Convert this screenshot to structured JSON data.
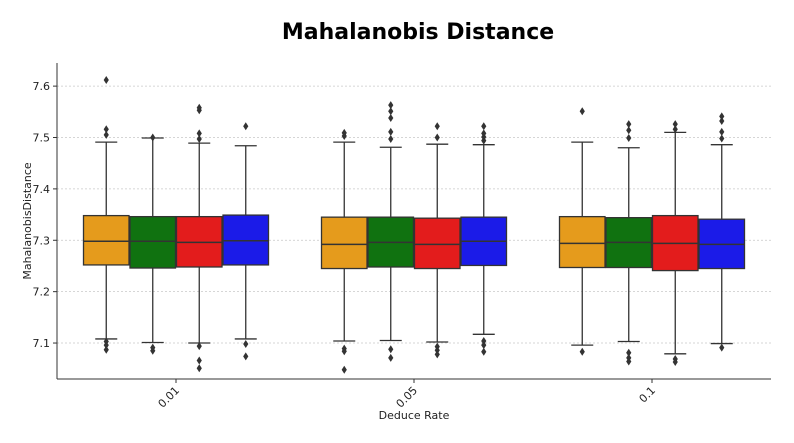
{
  "chart_data": {
    "type": "boxplot",
    "title": "Mahalanobis Distance",
    "xlabel": "Deduce Rate",
    "ylabel": "MahalanobisDistance",
    "ylim": [
      7.03,
      7.645
    ],
    "yticks": [
      7.1,
      7.2,
      7.3,
      7.4,
      7.5,
      7.6
    ],
    "ytick_labels": [
      "7.1",
      "7.2",
      "7.3",
      "7.4",
      "7.5",
      "7.6"
    ],
    "categories": [
      "0.01",
      "0.05",
      "0.1"
    ],
    "grid": true,
    "colors": [
      "#e59b1c",
      "#107210",
      "#e31c1c",
      "#1b1be8"
    ],
    "groups": [
      {
        "category": "0.01",
        "boxes": [
          {
            "whislo": 7.108,
            "q1": 7.252,
            "med": 7.298,
            "q3": 7.348,
            "whishi": 7.491,
            "fliers": [
              7.103,
              7.096,
              7.087,
              7.505,
              7.516,
              7.612
            ]
          },
          {
            "whislo": 7.101,
            "q1": 7.246,
            "med": 7.298,
            "q3": 7.346,
            "whishi": 7.499,
            "fliers": [
              7.091,
              7.085,
              7.5
            ]
          },
          {
            "whislo": 7.1,
            "q1": 7.248,
            "med": 7.296,
            "q3": 7.346,
            "whishi": 7.489,
            "fliers": [
              7.094,
              7.066,
              7.051,
              7.497,
              7.508,
              7.553,
              7.558
            ]
          },
          {
            "whislo": 7.108,
            "q1": 7.252,
            "med": 7.299,
            "q3": 7.349,
            "whishi": 7.484,
            "fliers": [
              7.098,
              7.074,
              7.522
            ]
          }
        ]
      },
      {
        "category": "0.05",
        "boxes": [
          {
            "whislo": 7.104,
            "q1": 7.245,
            "med": 7.292,
            "q3": 7.345,
            "whishi": 7.491,
            "fliers": [
              7.089,
              7.084,
              7.048,
              7.503,
              7.509
            ]
          },
          {
            "whislo": 7.105,
            "q1": 7.248,
            "med": 7.296,
            "q3": 7.345,
            "whishi": 7.481,
            "fliers": [
              7.088,
              7.071,
              7.497,
              7.511,
              7.538,
              7.551,
              7.563
            ]
          },
          {
            "whislo": 7.102,
            "q1": 7.245,
            "med": 7.292,
            "q3": 7.343,
            "whishi": 7.487,
            "fliers": [
              7.093,
              7.086,
              7.078,
              7.5,
              7.522
            ]
          },
          {
            "whislo": 7.117,
            "q1": 7.251,
            "med": 7.298,
            "q3": 7.345,
            "whishi": 7.486,
            "fliers": [
              7.104,
              7.096,
              7.083,
              7.494,
              7.501,
              7.508,
              7.522
            ]
          }
        ]
      },
      {
        "category": "0.1",
        "boxes": [
          {
            "whislo": 7.096,
            "q1": 7.247,
            "med": 7.294,
            "q3": 7.346,
            "whishi": 7.491,
            "fliers": [
              7.083,
              7.551
            ]
          },
          {
            "whislo": 7.103,
            "q1": 7.247,
            "med": 7.296,
            "q3": 7.344,
            "whishi": 7.48,
            "fliers": [
              7.081,
              7.071,
              7.064,
              7.499,
              7.514,
              7.526
            ]
          },
          {
            "whislo": 7.079,
            "q1": 7.241,
            "med": 7.294,
            "q3": 7.348,
            "whishi": 7.51,
            "fliers": [
              7.069,
              7.063,
              7.516,
              7.526
            ]
          },
          {
            "whislo": 7.099,
            "q1": 7.245,
            "med": 7.292,
            "q3": 7.341,
            "whishi": 7.486,
            "fliers": [
              7.091,
              7.498,
              7.511,
              7.532,
              7.541
            ]
          }
        ]
      }
    ]
  }
}
